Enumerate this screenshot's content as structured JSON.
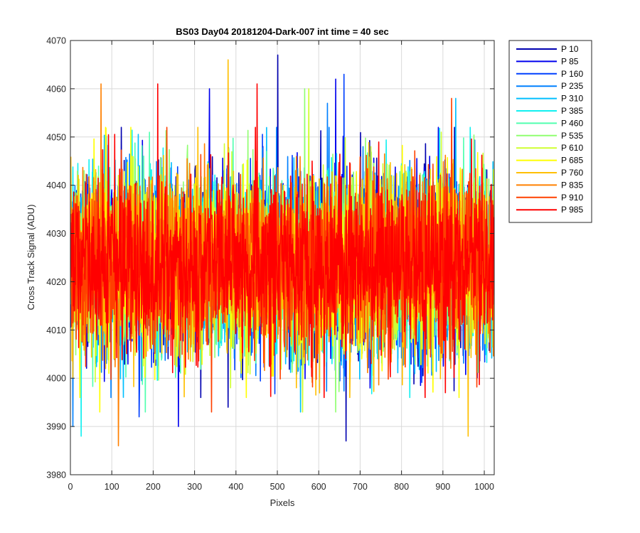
{
  "chart_data": {
    "type": "line",
    "title": "BS03 Day04 20181204-Dark-007 int time = 40 sec",
    "xlabel": "Pixels",
    "ylabel": "Cross Track Signal (ADU)",
    "xlim": [
      0,
      1024
    ],
    "ylim": [
      3980,
      4070
    ],
    "xticks": [
      0,
      100,
      200,
      300,
      400,
      500,
      600,
      700,
      800,
      900,
      1000
    ],
    "yticks": [
      3980,
      3990,
      4000,
      4010,
      4020,
      4030,
      4040,
      4050,
      4060,
      4070
    ],
    "grid": true,
    "legend_position": "outside-top-right",
    "noise": {
      "mean": 4024,
      "sd": 9,
      "n_points": 1024
    },
    "series": [
      {
        "name": "P 10",
        "color": "#0000b0",
        "extremes": [
          [
            500,
            4067
          ],
          [
            665,
            3987
          ],
          [
            380,
            3994
          ]
        ]
      },
      {
        "name": "P 85",
        "color": "#0000ee",
        "extremes": [
          [
            335,
            4060
          ],
          [
            640,
            4062
          ],
          [
            260,
            3990
          ]
        ]
      },
      {
        "name": "P 160",
        "color": "#0040ff",
        "extremes": [
          [
            660,
            4063
          ],
          [
            165,
            3992
          ]
        ]
      },
      {
        "name": "P 235",
        "color": "#0080ff",
        "extremes": [
          [
            620,
            4057
          ],
          [
            5,
            3990
          ]
        ]
      },
      {
        "name": "P 310",
        "color": "#00bfff",
        "extremes": [
          [
            930,
            4058
          ],
          [
            555,
            3993
          ]
        ]
      },
      {
        "name": "P 385",
        "color": "#10f0f0",
        "extremes": [
          [
            25,
            4055
          ],
          [
            25,
            3988
          ]
        ]
      },
      {
        "name": "P 460",
        "color": "#50ffaf",
        "extremes": [
          [
            190,
            4051
          ],
          [
            180,
            3993
          ]
        ]
      },
      {
        "name": "P 535",
        "color": "#90ff70",
        "extremes": [
          [
            565,
            4060
          ],
          [
            640,
            3993
          ]
        ]
      },
      {
        "name": "P 610",
        "color": "#cfff30",
        "extremes": [
          [
            575,
            4060
          ],
          [
            560,
            3993
          ]
        ]
      },
      {
        "name": "P 685",
        "color": "#ffff00",
        "extremes": [
          [
            145,
            4052
          ],
          [
            70,
            3993
          ]
        ]
      },
      {
        "name": "P 760",
        "color": "#ffbf00",
        "extremes": [
          [
            380,
            4066
          ],
          [
            960,
            3988
          ]
        ]
      },
      {
        "name": "P 835",
        "color": "#ff8000",
        "extremes": [
          [
            73,
            4061
          ],
          [
            115,
            3986
          ]
        ]
      },
      {
        "name": "P 910",
        "color": "#ff4000",
        "extremes": [
          [
            920,
            4058
          ],
          [
            340,
            3993
          ]
        ]
      },
      {
        "name": "P 985",
        "color": "#ff0000",
        "extremes": [
          [
            210,
            4061
          ],
          [
            450,
            4061
          ],
          [
            905,
            3997
          ]
        ]
      }
    ]
  }
}
